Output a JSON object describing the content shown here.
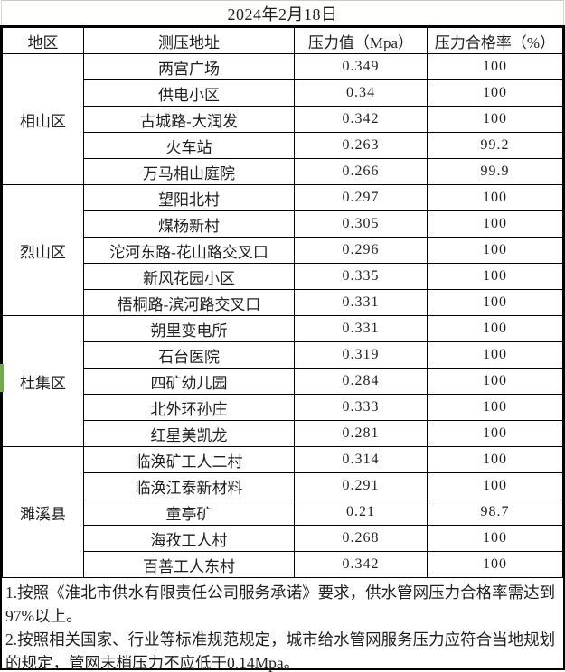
{
  "title": "2024年2月18日",
  "columns": {
    "region": "地区",
    "address": "测压地址",
    "pressure": "压力值（Mpa）",
    "pass_rate": "压力合格率（%）"
  },
  "regions": [
    {
      "name": "相山区",
      "rows": [
        {
          "address": "两宫广场",
          "pressure": "0.349",
          "rate": "100"
        },
        {
          "address": "供电小区",
          "pressure": "0.34",
          "rate": "100"
        },
        {
          "address": "古城路-大润发",
          "pressure": "0.342",
          "rate": "100"
        },
        {
          "address": "火车站",
          "pressure": "0.263",
          "rate": "99.2"
        },
        {
          "address": "万马相山庭院",
          "pressure": "0.266",
          "rate": "99.9"
        }
      ]
    },
    {
      "name": "烈山区",
      "rows": [
        {
          "address": "望阳北村",
          "pressure": "0.297",
          "rate": "100"
        },
        {
          "address": "煤杨新村",
          "pressure": "0.305",
          "rate": "100"
        },
        {
          "address": "沱河东路-花山路交叉口",
          "pressure": "0.296",
          "rate": "100"
        },
        {
          "address": "新风花园小区",
          "pressure": "0.335",
          "rate": "100"
        },
        {
          "address": "梧桐路-滨河路交叉口",
          "pressure": "0.331",
          "rate": "100"
        }
      ]
    },
    {
      "name": "杜集区",
      "rows": [
        {
          "address": "朔里变电所",
          "pressure": "0.331",
          "rate": "100"
        },
        {
          "address": "石台医院",
          "pressure": "0.319",
          "rate": "100"
        },
        {
          "address": "四矿幼儿园",
          "pressure": "0.284",
          "rate": "100"
        },
        {
          "address": "北外环孙庄",
          "pressure": "0.333",
          "rate": "100"
        },
        {
          "address": "红星美凯龙",
          "pressure": "0.281",
          "rate": "100"
        }
      ]
    },
    {
      "name": "濉溪县",
      "rows": [
        {
          "address": "临涣矿工人二村",
          "pressure": "0.314",
          "rate": "100"
        },
        {
          "address": "临涣江泰新材料",
          "pressure": "0.291",
          "rate": "100"
        },
        {
          "address": "童亭矿",
          "pressure": "0.21",
          "rate": "98.7"
        },
        {
          "address": "海孜工人村",
          "pressure": "0.268",
          "rate": "100"
        },
        {
          "address": "百善工人东村",
          "pressure": "0.342",
          "rate": "100"
        }
      ]
    }
  ],
  "notes": [
    "1.按照《淮北市供水有限责任公司服务承诺》要求，供水管网压力合格率需达到97%以上。",
    "2.按照相关国家、行业等标准规范规定，城市给水管网服务压力应符合当地规划的规定，管网末梢压力不应低于0.14Mpa。"
  ],
  "colors": {
    "border_black": "#000000",
    "grid_light": "#c9c9c9",
    "marker_green": "#70ad47",
    "text": "#1f1f1f"
  }
}
